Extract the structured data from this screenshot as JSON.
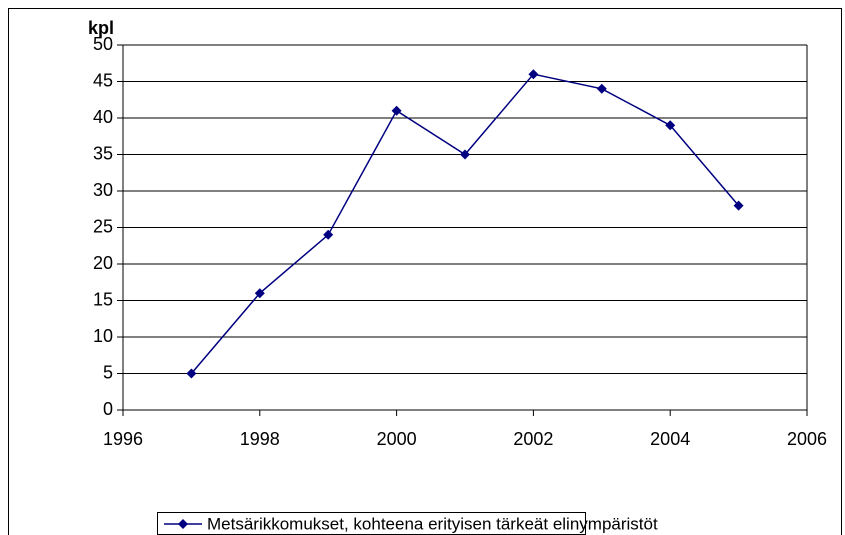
{
  "chart_data": {
    "type": "line",
    "y_label": "kpl",
    "x": [
      1997,
      1998,
      1999,
      2000,
      2001,
      2002,
      2003,
      2004,
      2005
    ],
    "series": [
      {
        "name": "Metsärikkomukset, kohteena erityisen tärkeät elinympäristöt",
        "color": "#000080",
        "values": [
          5,
          16,
          24,
          41,
          35,
          46,
          44,
          39,
          28
        ]
      }
    ],
    "xlim": [
      1996,
      2006
    ],
    "xticks": [
      1996,
      1998,
      2000,
      2002,
      2004,
      2006
    ],
    "ylim": [
      0,
      50
    ],
    "yticks": [
      0,
      5,
      10,
      15,
      20,
      25,
      30,
      35,
      40,
      45,
      50
    ],
    "grid": true,
    "legend": "bottom"
  }
}
